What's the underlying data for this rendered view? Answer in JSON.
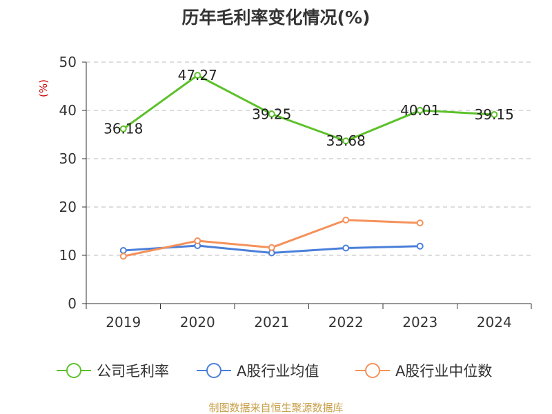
{
  "chart_data": {
    "type": "line",
    "title": "历年毛利率变化情况(%)",
    "ylabel": "(%)",
    "xlabel": "",
    "categories": [
      "2019",
      "2020",
      "2021",
      "2022",
      "2023",
      "2024"
    ],
    "ylim": [
      0,
      50
    ],
    "yticks": [
      0,
      10,
      20,
      30,
      40,
      50
    ],
    "grid": true,
    "legend_position": "bottom",
    "series": [
      {
        "name": "公司毛利率",
        "color": "#5cc12a",
        "values": [
          36.18,
          47.27,
          39.25,
          33.68,
          40.01,
          39.15
        ],
        "labels": [
          "36.18",
          "47.27",
          "39.25",
          "33.68",
          "40.01",
          "39.15"
        ]
      },
      {
        "name": "A股行业均值",
        "color": "#4a7fd9",
        "values": [
          11.0,
          12.0,
          10.5,
          11.5,
          11.9,
          null
        ],
        "labels": []
      },
      {
        "name": "A股行业中位数",
        "color": "#f5915a",
        "values": [
          9.8,
          13.0,
          11.6,
          17.3,
          16.7,
          null
        ],
        "labels": []
      }
    ]
  },
  "source_note": "制图数据来自恒生聚源数据库",
  "colors": {
    "axis": "#333333",
    "grid": "#bbbbbb",
    "ylabel": "#cc0000",
    "source": "#c8a04a"
  }
}
